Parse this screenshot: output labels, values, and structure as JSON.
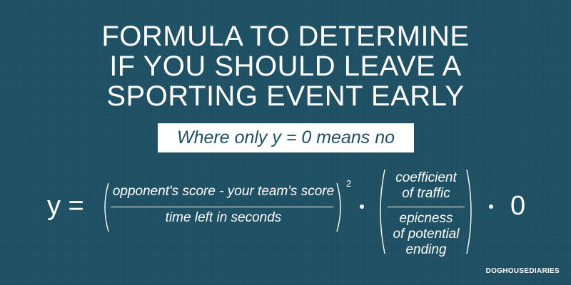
{
  "title": {
    "lines": [
      "FORMULA TO DETERMINE",
      "IF YOU SHOULD LEAVE A",
      "SPORTING EVENT EARLY"
    ]
  },
  "subtitle": "Where only y = 0 means no",
  "formula": {
    "lhs": "y =",
    "fraction1": {
      "numerator": "opponent's score - your team's score",
      "denominator": "time left in seconds"
    },
    "exponent": "2",
    "fraction2": {
      "numerator_lines": [
        "coefficient",
        "of traffic"
      ],
      "denominator_lines": [
        "epicness",
        "of potential",
        "ending"
      ]
    },
    "final_factor": "0"
  },
  "credit": "DOGHOUSEDIARIES",
  "colors": {
    "background": "#1d4f63",
    "text": "#ffffff"
  }
}
